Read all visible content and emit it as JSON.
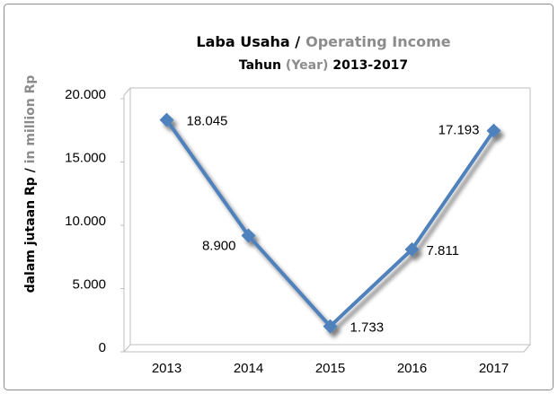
{
  "chart_data": {
    "type": "line",
    "title": [
      "Laba Usaha /",
      "Operating Income"
    ],
    "subtitle": [
      "Tahun",
      "(Year)",
      "2013-2017"
    ],
    "y_label": [
      "dalam jutaan Rp /",
      "in million Rp"
    ],
    "categories": [
      "2013",
      "2014",
      "2015",
      "2016",
      "2017"
    ],
    "series": [
      {
        "name": "Laba Usaha",
        "color": "#4f81bd",
        "values": [
          18045,
          8900,
          1733,
          7811,
          17193
        ],
        "value_labels": [
          "18.045",
          "8.900",
          "1.733",
          "7.811",
          "17.193"
        ]
      }
    ],
    "ylim": [
      0,
      20000
    ],
    "yticks": [
      0,
      {
        "value": 5000,
        "label": "5.000"
      },
      {
        "value": 10000,
        "label": "10.000"
      },
      {
        "value": 15000,
        "label": "15.000"
      },
      {
        "value": 20000,
        "label": "20.000"
      }
    ],
    "grid": false
  }
}
